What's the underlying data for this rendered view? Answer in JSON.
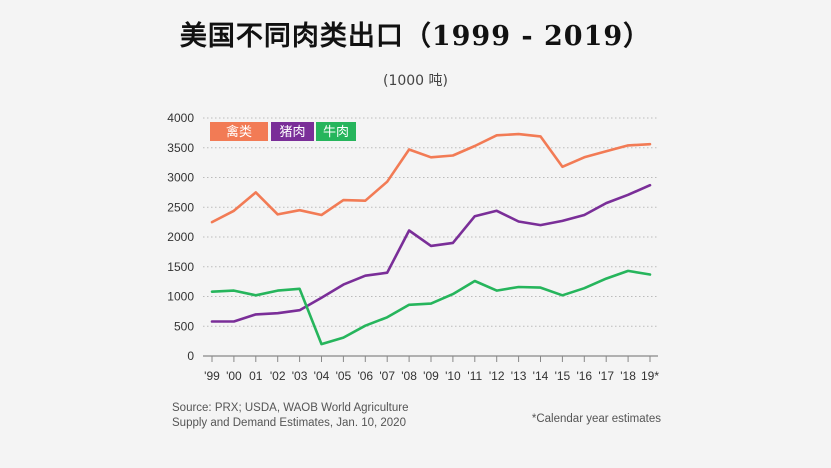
{
  "page": {
    "title": "美国不同肉类出口（1999 - 2019）",
    "subtitle": "(1000 吨)",
    "source": "Source: PRX; USDA, WAOB World Agriculture Supply and Demand Estimates, Jan. 10, 2020",
    "note": "*Calendar year estimates"
  },
  "colors": {
    "poultry": "#f27b55",
    "pork": "#7a2e98",
    "beef": "#26b55c",
    "axis": "#888888",
    "grid": "#bbbbbb"
  },
  "chart_data": {
    "type": "line",
    "title": "美国不同肉类出口（1999 - 2019）",
    "subtitle": "(1000 吨)",
    "xlabel": "",
    "ylabel": "",
    "ylim": [
      0,
      4000
    ],
    "yticks": [
      0,
      500,
      1000,
      1500,
      2000,
      2500,
      3000,
      3500,
      4000
    ],
    "grid": "horizontal",
    "legend_position": "top-left",
    "categories": [
      "'99",
      "'00",
      "01",
      "'02",
      "'03",
      "'04",
      "'05",
      "'06",
      "'07",
      "'08",
      "'09",
      "'10",
      "'11",
      "'12",
      "'13",
      "'14",
      "'15",
      "'16",
      "'17",
      "'18",
      "19*"
    ],
    "series": [
      {
        "name": "禽类",
        "color_key": "poultry",
        "values": [
          2250,
          2440,
          2750,
          2380,
          2450,
          2370,
          2620,
          2610,
          2930,
          3470,
          3340,
          3370,
          3530,
          3710,
          3730,
          3690,
          3180,
          3340,
          3440,
          3540,
          3560
        ]
      },
      {
        "name": "猪肉",
        "color_key": "pork",
        "values": [
          580,
          580,
          700,
          720,
          770,
          980,
          1200,
          1350,
          1400,
          2110,
          1850,
          1900,
          2350,
          2440,
          2260,
          2200,
          2270,
          2370,
          2570,
          2710,
          2870
        ]
      },
      {
        "name": "牛肉",
        "color_key": "beef",
        "values": [
          1080,
          1100,
          1020,
          1100,
          1130,
          200,
          310,
          510,
          650,
          860,
          880,
          1040,
          1260,
          1100,
          1160,
          1150,
          1020,
          1140,
          1300,
          1430,
          1370
        ]
      }
    ]
  }
}
